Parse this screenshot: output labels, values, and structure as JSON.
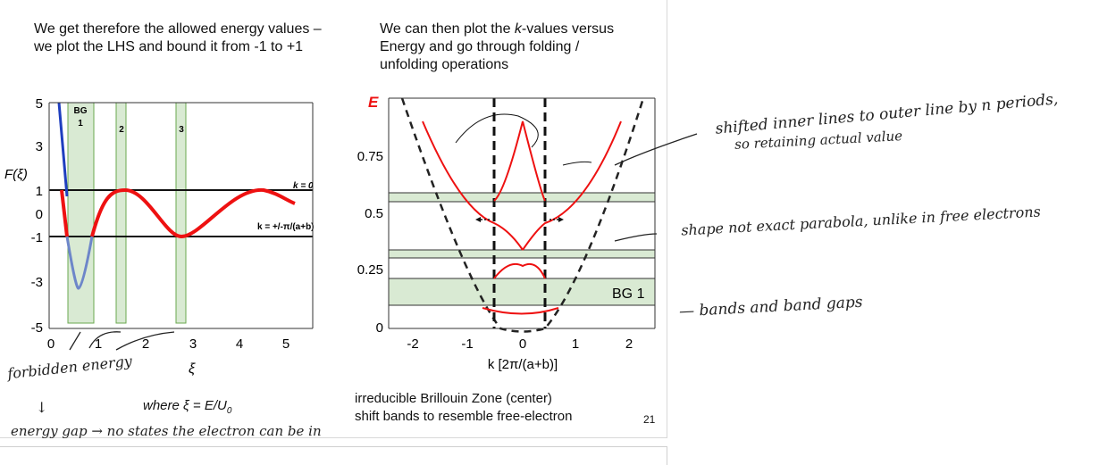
{
  "slide": {
    "left_text": "We get therefore the allowed energy values –\nwe plot the LHS and bound it from -1 to +1",
    "right_text_pre": "We can then plot the ",
    "right_text_k": "k",
    "right_text_post": "-values versus\nEnergy and go through folding /\nunfolding operations",
    "where_label": "where ξ = E/U",
    "where_sub": "0",
    "bz_line1": "irreducible Brillouin Zone (center)",
    "bz_line2": "shift bands to resemble free-electron",
    "page_number": "21"
  },
  "left_plot": {
    "ylabel": "F(ξ)",
    "xlabel": "ξ",
    "xticks": [
      "0",
      "1",
      "2",
      "3",
      "4",
      "5"
    ],
    "yticks": [
      "5",
      "3",
      "1",
      "0",
      "-1",
      "-3",
      "-5"
    ],
    "band_labels": [
      "BG\n1",
      "2",
      "3"
    ],
    "k0_label": "k = 0",
    "kpi_label": "k = +/-π/(a+b)"
  },
  "right_plot": {
    "ylabel": "E",
    "xlabel": "k [2π/(a+b)]",
    "xticks": [
      "-2",
      "-1",
      "0",
      "1",
      "2"
    ],
    "yticks": [
      "0",
      "0.25",
      "0.5",
      "0.75"
    ],
    "bg_label": "BG 1"
  },
  "annotations": {
    "a1_line1": "shifted inner lines to outer line by n periods,",
    "a1_line2": "so retaining actual value",
    "a2": "shape not exact parabola, unlike in free electrons",
    "a3": "— bands and band gaps",
    "a4_line1": "forbidden energy",
    "a4_arrow": "↓",
    "a4_line2": "energy gap  →  no states the electron can be in"
  },
  "colors": {
    "band_fill": "#d9ead3",
    "band_stroke": "#6aa84f",
    "curve_red": "#ee1111",
    "curve_blue": "#1f3fbf",
    "curve_lightblue": "#6d86c9"
  }
}
